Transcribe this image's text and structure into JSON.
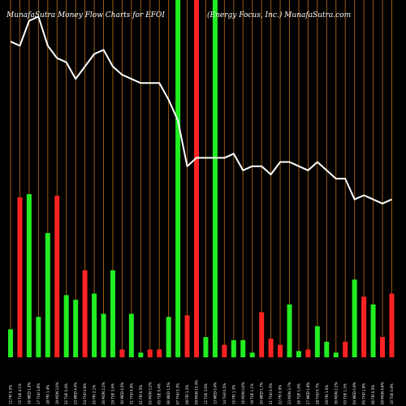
{
  "header": {
    "left": "MunafaSutra  Money Flow  Charts for EFOI",
    "right": "(Energy Focus, Inc.) MunafaSutra.com"
  },
  "chart_data": {
    "type": "bar",
    "title": "Money Flow Charts for EFOI",
    "subtitle": "(Energy Focus, Inc.)",
    "colors": {
      "up": "#22ee22",
      "down": "#ff2222",
      "grid": "#9a5a12",
      "price_line": "#ffffff",
      "background": "#000000"
    },
    "categories": [
      "12 FRI 0.0%",
      "15 TUE 4.1%",
      "16 WED 1.9%",
      "17 THU 3.8%",
      "18 FRI 1.4%",
      "19 MON 3.0%",
      "22 TUE 0.4%",
      "23 WED 4.4%",
      "24 THU 0.8%",
      "25 FRI 2.1%",
      "26 MON 2.2%",
      "29 TUE 3.4%",
      "30 WED 4.5%",
      "31 THU 4.9%",
      "01 FRI 0.5%",
      "02 MON 3.2%",
      "05 TUE 0.4%",
      "06 WED 1.5%",
      "07 THU 5.3%",
      "08 FRI 1.2%",
      "09 MON 13.4%",
      "12 TUE 3.6%",
      "13 WED 0.4%",
      "14 THU 0.5%",
      "15 FRI 1.3%",
      "16 MON 0.6%",
      "19 TUE 1.1%",
      "20 WED 1.7%",
      "21 THU 0.5%",
      "22 FRI 0.9%",
      "23 MON 3.7%",
      "26 TUE 1.6%",
      "27 WED 1.8%",
      "28 THU 0.7%",
      "29 FRI 1.0%",
      "30 MON 2.2%",
      "03 TUE 1.5%",
      "04 WED 0.9%",
      "05 THU 1.8%",
      "06 FRI 0.5%",
      "09 MON 4.8%",
      "10 TUE 0.8%"
    ],
    "series": [
      {
        "values": [
          18,
          103,
          105,
          26,
          80,
          104,
          40,
          37,
          56,
          41,
          28,
          56,
          5,
          28,
          3,
          5,
          5,
          26,
          230,
          27,
          230,
          13,
          230,
          8,
          11,
          11,
          3,
          29,
          12,
          8,
          34,
          4,
          5,
          20,
          10,
          3,
          10,
          50,
          39,
          34,
          13,
          41
        ],
        "colors": [
          "G",
          "R",
          "G",
          "G",
          "G",
          "R",
          "G",
          "G",
          "R",
          "G",
          "G",
          "G",
          "R",
          "G",
          "G",
          "R",
          "R",
          "G",
          "G",
          "R",
          "R",
          "G",
          "G",
          "R",
          "G",
          "G",
          "G",
          "R",
          "R",
          "R",
          "G",
          "G",
          "R",
          "G",
          "G",
          "G",
          "R",
          "G",
          "R",
          "G",
          "R",
          "R"
        ]
      }
    ],
    "price_line": [
      76,
      75,
      81,
      82,
      75,
      72,
      71,
      67,
      70,
      73,
      74,
      70,
      68,
      67,
      66,
      66,
      66,
      62,
      57,
      46,
      48,
      48,
      48,
      48,
      49,
      45,
      46,
      46,
      44,
      47,
      47,
      46,
      45,
      47,
      45,
      43,
      43,
      38,
      39,
      38,
      37,
      38
    ],
    "ylim": [
      0,
      230
    ],
    "price_ylim": [
      0,
      86
    ],
    "grid": true
  }
}
